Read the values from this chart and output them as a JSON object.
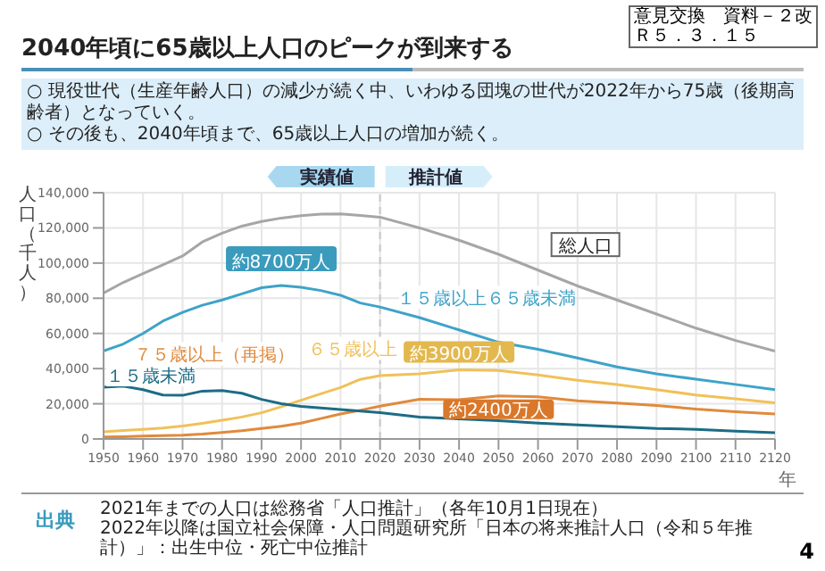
{
  "chart_data": {
    "type": "line",
    "title": "2040年頃に65歳以上人口のピークが到来する",
    "ylabel": "人口（千人）",
    "xlabel": "年",
    "x": [
      1950,
      1955,
      1960,
      1965,
      1970,
      1975,
      1980,
      1985,
      1990,
      1995,
      2000,
      2005,
      2010,
      2015,
      2020,
      2030,
      2040,
      2050,
      2060,
      2070,
      2080,
      2090,
      2100,
      2110,
      2120
    ],
    "series": [
      {
        "name": "総人口",
        "color": "#a6a6a6",
        "values": [
          83000,
          89000,
          94000,
          99000,
          104000,
          112000,
          117000,
          121000,
          123600,
          125600,
          126900,
          127800,
          128000,
          127100,
          126100,
          120000,
          113000,
          105000,
          96000,
          87000,
          79000,
          71000,
          63000,
          56000,
          50000
        ]
      },
      {
        "name": "１５歳以上６５歳未満",
        "color": "#3ea3c8",
        "values": [
          50000,
          54000,
          60000,
          67000,
          72000,
          76000,
          79000,
          82500,
          86000,
          87200,
          86200,
          84400,
          81700,
          77300,
          75000,
          69000,
          62000,
          55000,
          51000,
          46000,
          41000,
          37000,
          34000,
          31000,
          28000
        ]
      },
      {
        "name": "６５歳以上",
        "color": "#f0c15a",
        "values": [
          4100,
          4800,
          5400,
          6200,
          7400,
          8900,
          10600,
          12500,
          14900,
          18300,
          22000,
          25700,
          29200,
          33900,
          36000,
          37000,
          39300,
          38900,
          36400,
          33400,
          30900,
          28000,
          25000,
          22800,
          20500
        ]
      },
      {
        "name": "７５歳以上（再掲）",
        "color": "#e08a3c",
        "values": [
          1100,
          1300,
          1600,
          1900,
          2200,
          2800,
          3700,
          4700,
          6000,
          7200,
          9000,
          11600,
          14200,
          16300,
          18600,
          22600,
          22300,
          24500,
          24000,
          21700,
          20400,
          19000,
          17000,
          15500,
          14200
        ]
      },
      {
        "name": "１５歳未満",
        "color": "#1d6c85",
        "values": [
          29400,
          30000,
          28000,
          25000,
          24800,
          27200,
          27500,
          26000,
          22500,
          20000,
          18500,
          17600,
          16800,
          15900,
          15000,
          12400,
          11400,
          10400,
          9000,
          8000,
          7000,
          6000,
          5500,
          4500,
          3500
        ]
      }
    ],
    "xlim": [
      1950,
      2120
    ],
    "xticks": [
      1950,
      1960,
      1970,
      1980,
      1990,
      2000,
      2010,
      2020,
      2030,
      2040,
      2050,
      2060,
      2070,
      2080,
      2090,
      2100,
      2110,
      2120
    ],
    "ylim": [
      0,
      140000
    ],
    "yticks": [
      {
        "value": 0,
        "label": "0"
      },
      {
        "value": 20000,
        "label": "20,000"
      },
      {
        "value": 40000,
        "label": "40,000"
      },
      {
        "value": 60000,
        "label": "60,000"
      },
      {
        "value": 80000,
        "label": "80,000"
      },
      {
        "value": 100000,
        "label": "100,000"
      },
      {
        "value": 120000,
        "label": "120,000"
      },
      {
        "value": 140000,
        "label": "140,000"
      }
    ],
    "ref_lines": [
      {
        "axis": "x",
        "value": 2020,
        "color": "#c8c8c8",
        "line_style": "dashed"
      }
    ],
    "grid": true,
    "legend": false,
    "marker": "none",
    "line_style": "solid",
    "annotations": [
      "意見交換　資料－２改",
      "Ｒ５．３．１５",
      "○ 現役世代（生産年齢人口）の減少が続く中、いわゆる団塊の世代が2022年から75歳（後期高齢者）となっていく。",
      "○ その後も、2040年頃まで、65歳以上人口の増加が続く。",
      "実績値",
      "推計値",
      "出典",
      "2021年までの人口は総務省「人口推計」（各年10月1日現在）",
      "2022年以降は国立社会保障・人口問題研究所「日本の将来推計人口（令和５年推計）」：出生中位・死亡中位推計",
      "4",
      {
        "text": "約8700万人",
        "x": 1995,
        "y": 87200
      },
      {
        "text": "約3900万人",
        "x": 2040,
        "y": 39300
      },
      {
        "text": "約2400万人",
        "x": 2050,
        "y": 24500
      }
    ]
  }
}
